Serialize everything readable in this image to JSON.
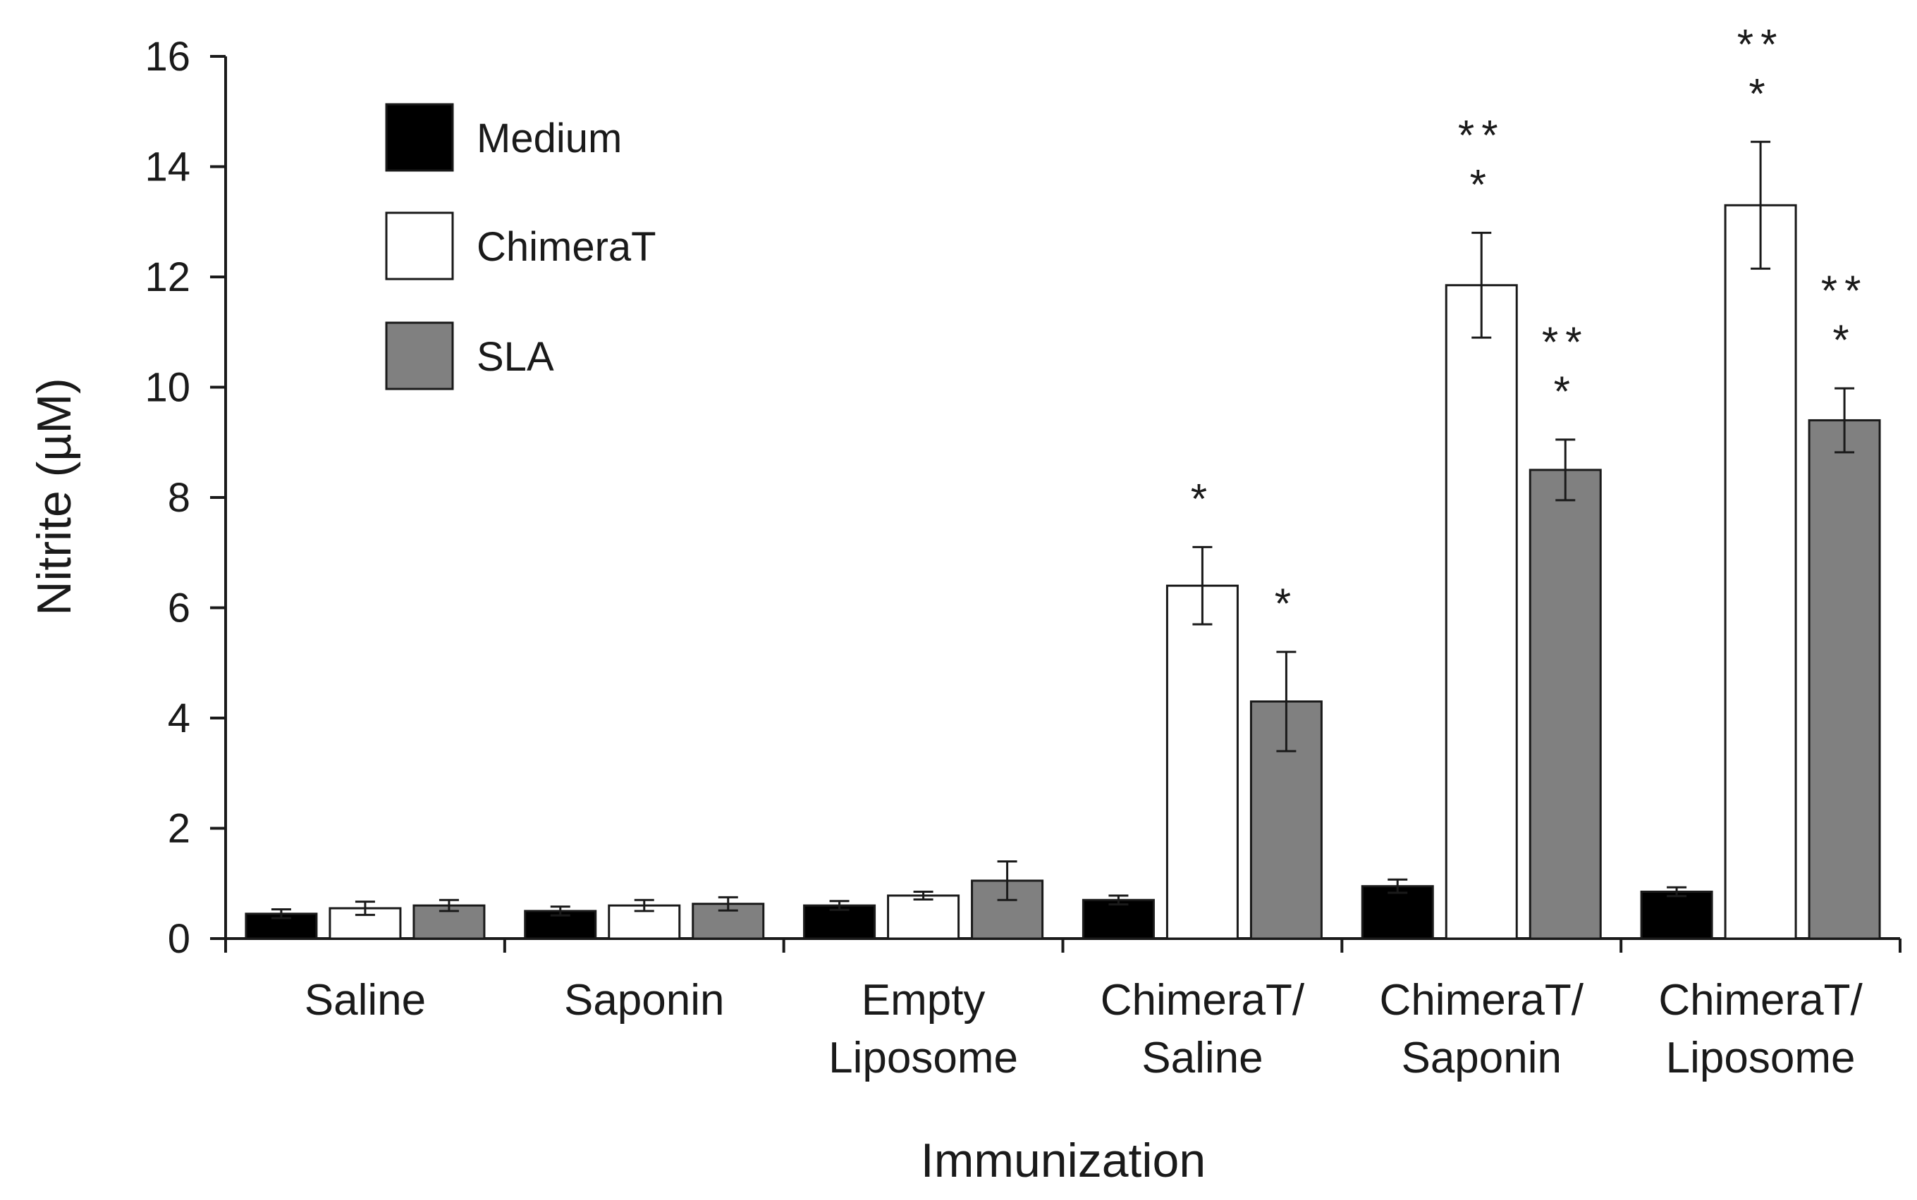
{
  "chart_data": {
    "type": "bar",
    "title": "",
    "xlabel": "Immunization",
    "ylabel": "Nitrite (µM)",
    "ylim": [
      0,
      16
    ],
    "yticks": [
      0,
      2,
      4,
      6,
      8,
      10,
      12,
      14,
      16
    ],
    "grid": false,
    "legend_position": "top-left",
    "categories": [
      [
        "Saline"
      ],
      [
        "Saponin"
      ],
      [
        "Empty",
        "Liposome"
      ],
      [
        "ChimeraT/",
        "Saline"
      ],
      [
        "ChimeraT/",
        "Saponin"
      ],
      [
        "ChimeraT/",
        "Liposome"
      ]
    ],
    "series": [
      {
        "name": "Medium",
        "color": "#000000",
        "values": [
          0.45,
          0.5,
          0.6,
          0.7,
          0.95,
          0.85
        ],
        "errors": [
          0.08,
          0.08,
          0.08,
          0.08,
          0.12,
          0.08
        ],
        "significance": [
          "",
          "",
          "",
          "",
          "",
          ""
        ]
      },
      {
        "name": "ChimeraT",
        "color": "#ffffff",
        "values": [
          0.55,
          0.6,
          0.78,
          6.4,
          11.85,
          13.3
        ],
        "errors": [
          0.12,
          0.1,
          0.07,
          0.7,
          0.95,
          1.15
        ],
        "significance": [
          "",
          "",
          "",
          "*",
          "**\n*",
          "**\n*"
        ]
      },
      {
        "name": "SLA",
        "color": "#808080",
        "values": [
          0.6,
          0.63,
          1.05,
          4.3,
          8.5,
          9.4
        ],
        "errors": [
          0.1,
          0.12,
          0.35,
          0.9,
          0.55,
          0.58
        ],
        "significance": [
          "",
          "",
          "",
          "*",
          "**\n*",
          "**\n*"
        ]
      }
    ]
  }
}
